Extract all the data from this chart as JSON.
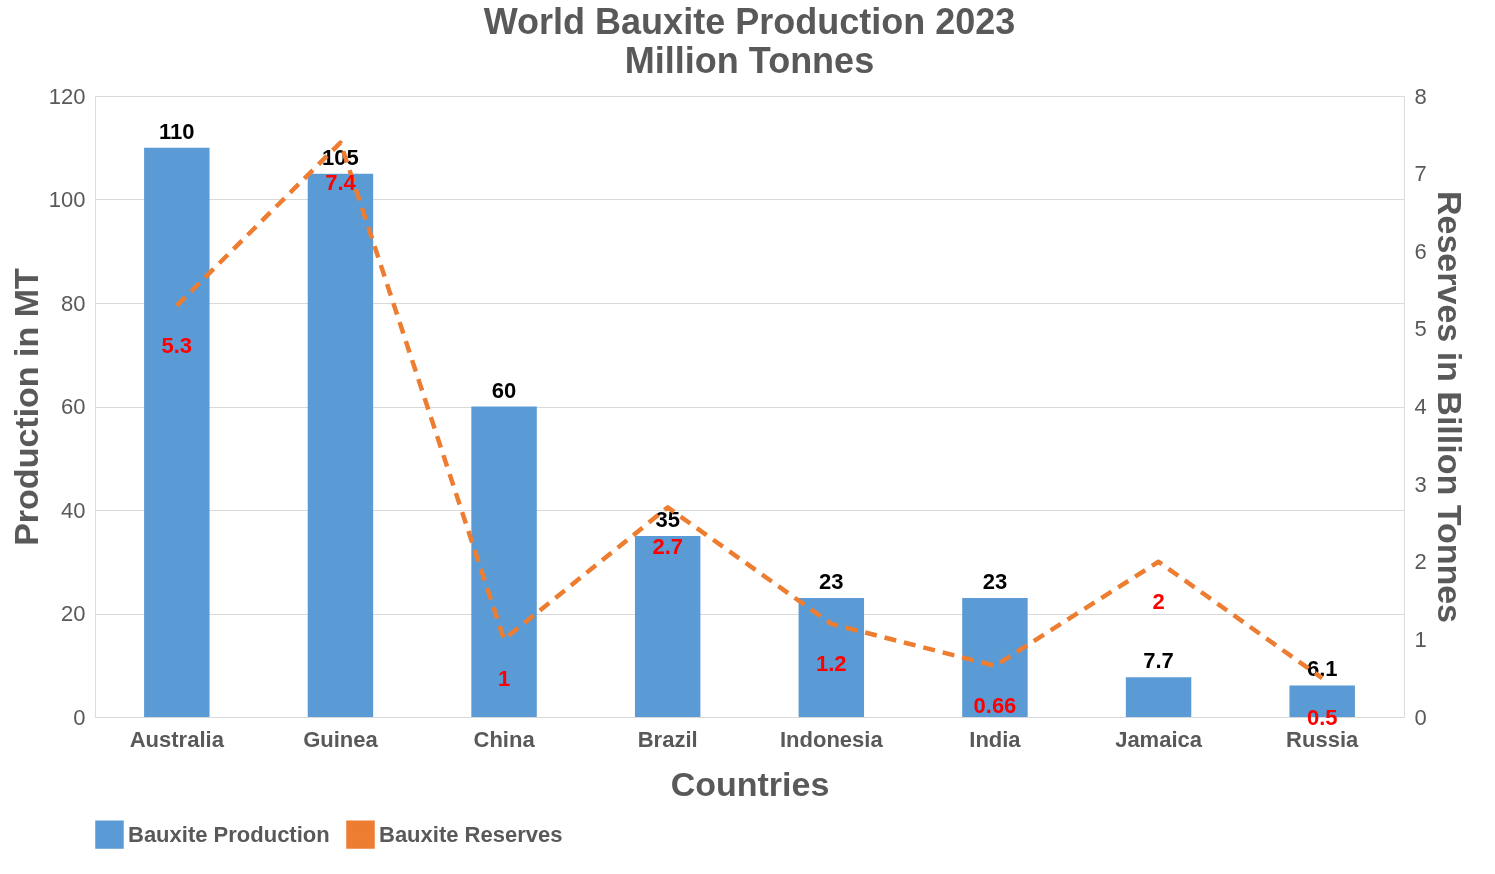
{
  "chart_data": {
    "type": "bar",
    "title": "World Bauxite Production 2023",
    "subtitle": "Million Tonnes",
    "xlabel": "Countries",
    "ylabel": "Production in MT",
    "y2label": "Reserves in Billion Tonnes",
    "categories": [
      "Australia",
      "Guinea",
      "China",
      "Brazil",
      "Indonesia",
      "India",
      "Jamaica",
      "Russia"
    ],
    "series": [
      {
        "name": "Bauxite Production",
        "color": "#5b9bd5",
        "values": [
          110,
          105,
          60,
          35,
          23,
          23,
          7.7,
          6.1
        ]
      },
      {
        "name": "Bauxite Reserves",
        "type": "line",
        "axis": "y2",
        "color": "#ed7d31",
        "line_style": "dashed",
        "marker": "none",
        "values": [
          5.3,
          7.4,
          1,
          2.7,
          1.2,
          0.66,
          2,
          0.5
        ]
      }
    ],
    "ylim": [
      0,
      120
    ],
    "yticks": [
      0,
      20,
      40,
      60,
      80,
      100,
      120
    ],
    "y2lim": [
      0,
      8
    ],
    "y2ticks": [
      0,
      1,
      2,
      3,
      4,
      5,
      6,
      7,
      8
    ],
    "grid": "y",
    "legend": "bottom",
    "data_labels": true
  }
}
